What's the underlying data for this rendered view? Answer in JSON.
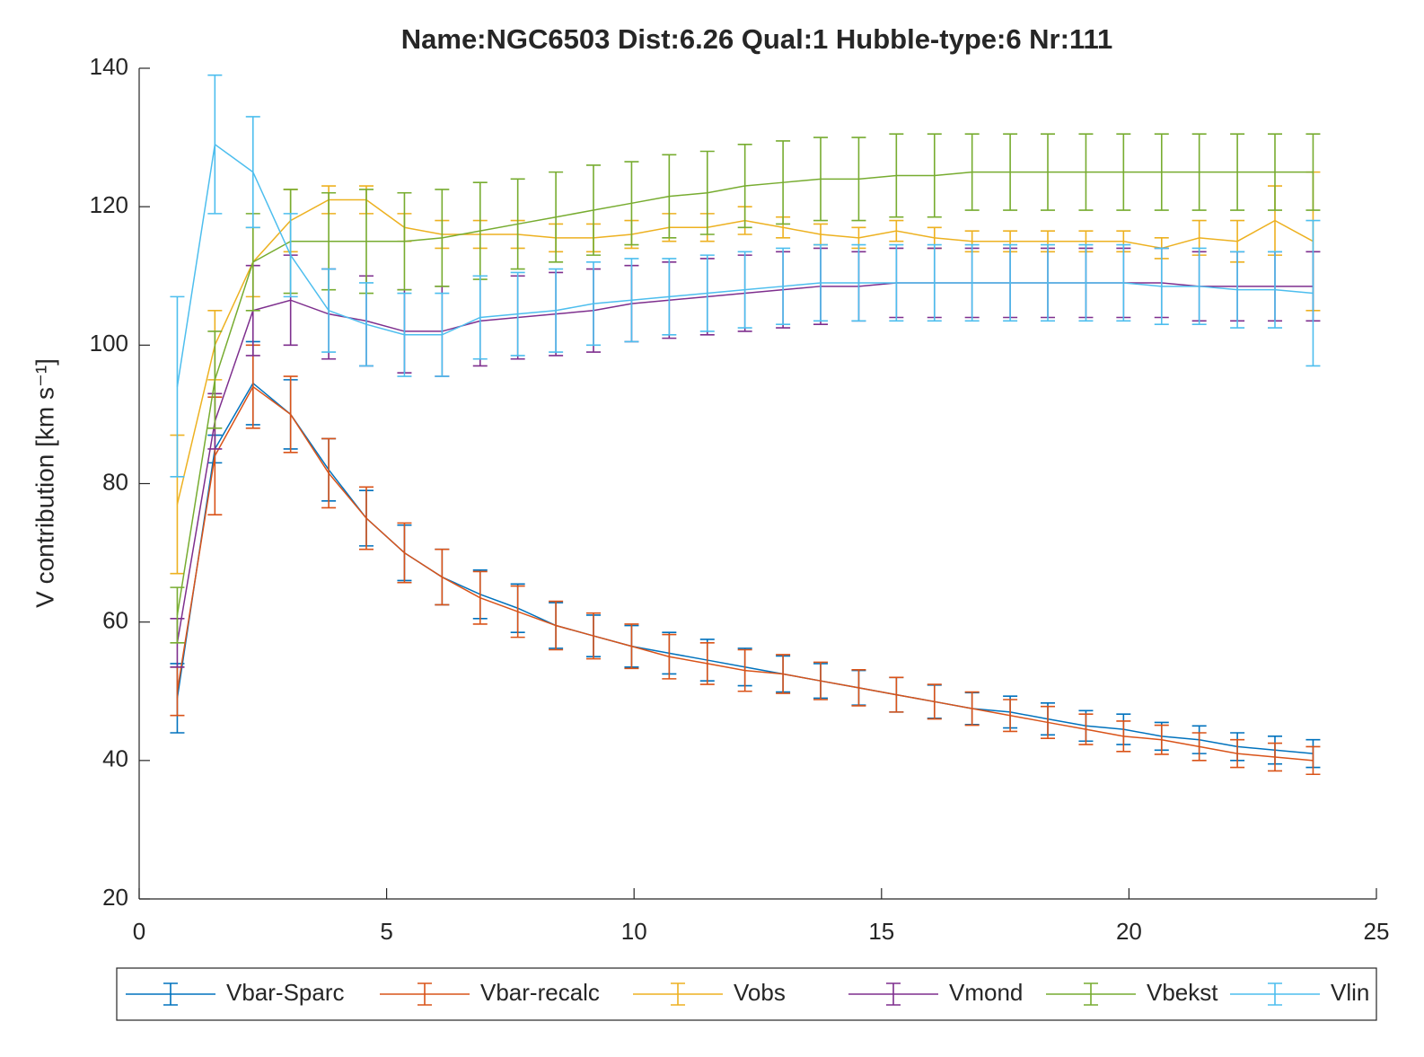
{
  "chart_data": {
    "type": "line",
    "title": "Name:NGC6503   Dist:6.26   Qual:1   Hubble-type:6   Nr:111",
    "y_label": "V contribution  [km s⁻¹]",
    "x": [
      0.77,
      1.53,
      2.3,
      3.06,
      3.83,
      4.59,
      5.36,
      6.12,
      6.89,
      7.65,
      8.42,
      9.18,
      9.95,
      10.71,
      11.48,
      12.24,
      13.01,
      13.77,
      14.54,
      15.3,
      16.07,
      16.83,
      17.6,
      18.36,
      19.13,
      19.89,
      20.66,
      21.42,
      22.19,
      22.95,
      23.72
    ],
    "xlim": [
      0,
      25
    ],
    "xticks": [
      0,
      5,
      10,
      15,
      20,
      25
    ],
    "ylim": [
      20,
      140
    ],
    "yticks": [
      20,
      40,
      60,
      80,
      100,
      120,
      140
    ],
    "legend": "bottom-outside",
    "series": [
      {
        "name": "Vbar-Sparc",
        "color": "#0072bd",
        "values": [
          49,
          85,
          94.5,
          90,
          82,
          75,
          70,
          66.5,
          64,
          62,
          59.5,
          58,
          56.5,
          55.5,
          54.5,
          53.5,
          52.5,
          51.5,
          50.5,
          49.5,
          48.5,
          47.5,
          47,
          46,
          45,
          44.5,
          43.5,
          43,
          42,
          41.5,
          41
        ],
        "errors": [
          5,
          2,
          6,
          5,
          4.5,
          4,
          4,
          4,
          3.5,
          3.5,
          3.3,
          3,
          3,
          3,
          3,
          2.7,
          2.6,
          2.5,
          2.5,
          2.5,
          2.4,
          2.3,
          2.3,
          2.3,
          2.2,
          2.2,
          2,
          2,
          2,
          2,
          2
        ]
      },
      {
        "name": "Vbar-recalc",
        "color": "#d95319",
        "values": [
          50,
          84,
          94,
          90,
          81.5,
          75,
          70,
          66.5,
          63.5,
          61.5,
          59.5,
          58,
          56.5,
          55,
          54,
          53,
          52.5,
          51.5,
          50.5,
          49.5,
          48.5,
          47.5,
          46.5,
          45.5,
          44.5,
          43.5,
          43,
          42,
          41,
          40.5,
          40
        ],
        "errors": [
          3.5,
          8.5,
          6,
          5.5,
          5,
          4.5,
          4.3,
          4,
          3.8,
          3.7,
          3.5,
          3.3,
          3.2,
          3.2,
          3,
          3,
          2.8,
          2.7,
          2.6,
          2.5,
          2.5,
          2.4,
          2.3,
          2.3,
          2.2,
          2.2,
          2.1,
          2,
          2,
          2,
          2
        ]
      },
      {
        "name": "Vobs",
        "color": "#edb120",
        "values": [
          77,
          100,
          112,
          118,
          121,
          121,
          117,
          116,
          116,
          116,
          115.5,
          115.5,
          116,
          117,
          117,
          118,
          117,
          116,
          115.5,
          116.5,
          115.5,
          115,
          115,
          115,
          115,
          115,
          114,
          115.5,
          115,
          118,
          115
        ],
        "errors": [
          10,
          5,
          5,
          4.5,
          2,
          2,
          2,
          2,
          2,
          2,
          2,
          2,
          2,
          2,
          2,
          2,
          1.5,
          1.5,
          1.5,
          1.5,
          1.5,
          1.5,
          1.5,
          1.5,
          1.5,
          1.5,
          1.5,
          2.5,
          3,
          5,
          10
        ]
      },
      {
        "name": "Vmond",
        "color": "#7e2f8e",
        "values": [
          57,
          89,
          105,
          106.5,
          104.5,
          103.5,
          102,
          102,
          103.5,
          104,
          104.5,
          105,
          106,
          106.5,
          107,
          107.5,
          108,
          108.5,
          108.5,
          109,
          109,
          109,
          109,
          109,
          109,
          109,
          109,
          108.5,
          108.5,
          108.5,
          108.5
        ],
        "errors": [
          3.5,
          4,
          6.5,
          6.5,
          6.5,
          6.5,
          6,
          6.5,
          6.5,
          6,
          6,
          6,
          5.5,
          5.5,
          5.5,
          5.5,
          5.5,
          5.5,
          5,
          5,
          5,
          5,
          5,
          5,
          5,
          5,
          5,
          5,
          5,
          5,
          5
        ]
      },
      {
        "name": "Vbekst",
        "color": "#77ac30",
        "values": [
          61,
          95,
          112,
          115,
          115,
          115,
          115,
          115.5,
          116.5,
          117.5,
          118.5,
          119.5,
          120.5,
          121.5,
          122,
          123,
          123.5,
          124,
          124,
          124.5,
          124.5,
          125,
          125,
          125,
          125,
          125,
          125,
          125,
          125,
          125,
          125
        ],
        "errors": [
          4,
          7,
          7,
          7.5,
          7,
          7.5,
          7,
          7,
          7,
          6.5,
          6.5,
          6.5,
          6,
          6,
          6,
          6,
          6,
          6,
          6,
          6,
          6,
          5.5,
          5.5,
          5.5,
          5.5,
          5.5,
          5.5,
          5.5,
          5.5,
          5.5,
          5.5
        ]
      },
      {
        "name": "Vlin",
        "color": "#4dbeee",
        "values": [
          94,
          129,
          125,
          113,
          105,
          103,
          101.5,
          101.5,
          104,
          104.5,
          105,
          106,
          106.5,
          107,
          107.5,
          108,
          108.5,
          109,
          109,
          109,
          109,
          109,
          109,
          109,
          109,
          109,
          108.5,
          108.5,
          108,
          108,
          107.5
        ],
        "errors": [
          13,
          10,
          8,
          6,
          6,
          6,
          6,
          6,
          6,
          6,
          6,
          6,
          6,
          5.5,
          5.5,
          5.5,
          5.5,
          5.5,
          5.5,
          5.5,
          5.5,
          5.5,
          5.5,
          5.5,
          5.5,
          5.5,
          5.5,
          5.5,
          5.5,
          5.5,
          10.5
        ]
      }
    ]
  }
}
